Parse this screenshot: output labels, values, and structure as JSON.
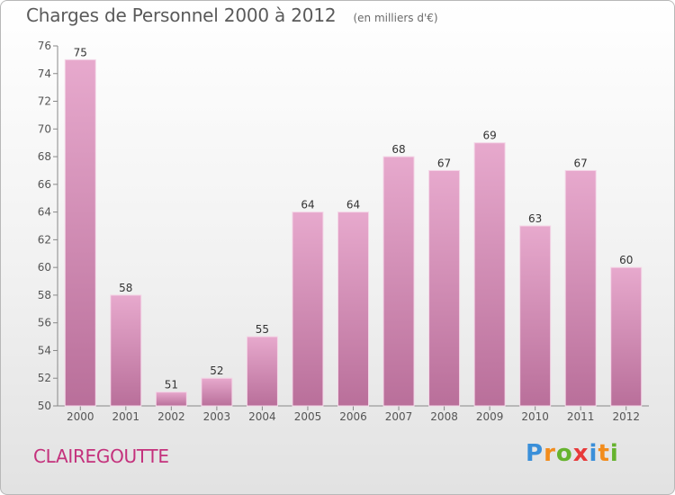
{
  "header": {
    "title": "Charges de Personnel 2000 à 2012",
    "subtitle": "(en milliers d'€)"
  },
  "footer": {
    "place": "CLAIREGOUTTE",
    "logo": [
      "P",
      "r",
      "o",
      "x",
      "i",
      "t",
      "i"
    ],
    "logo_colors": [
      "#3a8fd9",
      "#f28c1c",
      "#66b32e",
      "#e83a3a",
      "#3a8fd9",
      "#f28c1c",
      "#66b32e"
    ]
  },
  "colors": {
    "bar_top": "#e7a9cd",
    "bar_bottom": "#b96f9a",
    "title": "#5a5a5a",
    "place": "#c4317c"
  },
  "chart_data": {
    "type": "bar",
    "title": "Charges de Personnel 2000 à 2012",
    "subtitle": "(en milliers d'€)",
    "xlabel": "",
    "ylabel": "",
    "categories": [
      "2000",
      "2001",
      "2002",
      "2003",
      "2004",
      "2005",
      "2006",
      "2007",
      "2008",
      "2009",
      "2010",
      "2011",
      "2012"
    ],
    "values": [
      75,
      58,
      51,
      52,
      55,
      64,
      64,
      68,
      67,
      69,
      63,
      67,
      60
    ],
    "ylim": [
      50,
      76
    ],
    "yticks": [
      50,
      52,
      54,
      56,
      58,
      60,
      62,
      64,
      66,
      68,
      70,
      72,
      74,
      76
    ],
    "grid": false,
    "data_labels": true
  }
}
